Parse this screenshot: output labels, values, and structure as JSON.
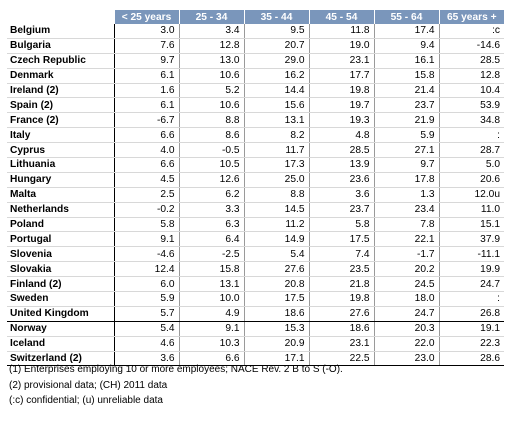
{
  "table": {
    "headers": [
      "",
      "< 25 years",
      "25 - 34",
      "35 - 44",
      "45 - 54",
      "55 - 64",
      "65 years +"
    ],
    "rows": [
      [
        "Belgium",
        "3.0",
        "3.4",
        "9.5",
        "11.8",
        "17.4",
        ":c"
      ],
      [
        "Bulgaria",
        "7.6",
        "12.8",
        "20.7",
        "19.0",
        "9.4",
        "-14.6"
      ],
      [
        "Czech Republic",
        "9.7",
        "13.0",
        "29.0",
        "23.1",
        "16.1",
        "28.5"
      ],
      [
        "Denmark",
        "6.1",
        "10.6",
        "16.2",
        "17.7",
        "15.8",
        "12.8"
      ],
      [
        "Ireland (2)",
        "1.6",
        "5.2",
        "14.4",
        "19.8",
        "21.4",
        "10.4"
      ],
      [
        "Spain (2)",
        "6.1",
        "10.6",
        "15.6",
        "19.7",
        "23.7",
        "53.9"
      ],
      [
        "France (2)",
        "-6.7",
        "8.8",
        "13.1",
        "19.3",
        "21.9",
        "34.8"
      ],
      [
        "Italy",
        "6.6",
        "8.6",
        "8.2",
        "4.8",
        "5.9",
        ":"
      ],
      [
        "Cyprus",
        "4.0",
        "-0.5",
        "11.7",
        "28.5",
        "27.1",
        "28.7"
      ],
      [
        "Lithuania",
        "6.6",
        "10.5",
        "17.3",
        "13.9",
        "9.7",
        "5.0"
      ],
      [
        "Hungary",
        "4.5",
        "12.6",
        "25.0",
        "23.6",
        "17.8",
        "20.6"
      ],
      [
        "Malta",
        "2.5",
        "6.2",
        "8.8",
        "3.6",
        "1.3",
        "12.0u"
      ],
      [
        "Netherlands",
        "-0.2",
        "3.3",
        "14.5",
        "23.7",
        "23.4",
        "11.0"
      ],
      [
        "Poland",
        "5.8",
        "6.3",
        "11.2",
        "5.8",
        "7.8",
        "15.1"
      ],
      [
        "Portugal",
        "9.1",
        "6.4",
        "14.9",
        "17.5",
        "22.1",
        "37.9"
      ],
      [
        "Slovenia",
        "-4.6",
        "-2.5",
        "5.4",
        "7.4",
        "-1.7",
        "-11.1"
      ],
      [
        "Slovakia",
        "12.4",
        "15.8",
        "27.6",
        "23.5",
        "20.2",
        "19.9"
      ],
      [
        "Finland (2)",
        "6.0",
        "13.1",
        "20.8",
        "21.8",
        "24.5",
        "24.7"
      ],
      [
        "Sweden",
        "5.9",
        "10.0",
        "17.5",
        "19.8",
        "18.0",
        ":"
      ],
      [
        "United Kingdom",
        "5.7",
        "4.9",
        "18.6",
        "27.6",
        "24.7",
        "26.8"
      ],
      [
        "Norway",
        "5.4",
        "9.1",
        "15.3",
        "18.6",
        "20.3",
        "19.1"
      ],
      [
        "Iceland",
        "4.6",
        "10.3",
        "20.9",
        "23.1",
        "22.0",
        "22.3"
      ],
      [
        "Switzerland (2)",
        "3.6",
        "6.6",
        "17.1",
        "22.5",
        "23.0",
        "28.6"
      ]
    ]
  },
  "notes": [
    "(1) Enterprises employing 10 or more employees; NACE Rev. 2 B to S (-O).",
    "(2) provisional data; (CH) 2011 data",
    "(:c) confidential; (u) unreliable data"
  ]
}
